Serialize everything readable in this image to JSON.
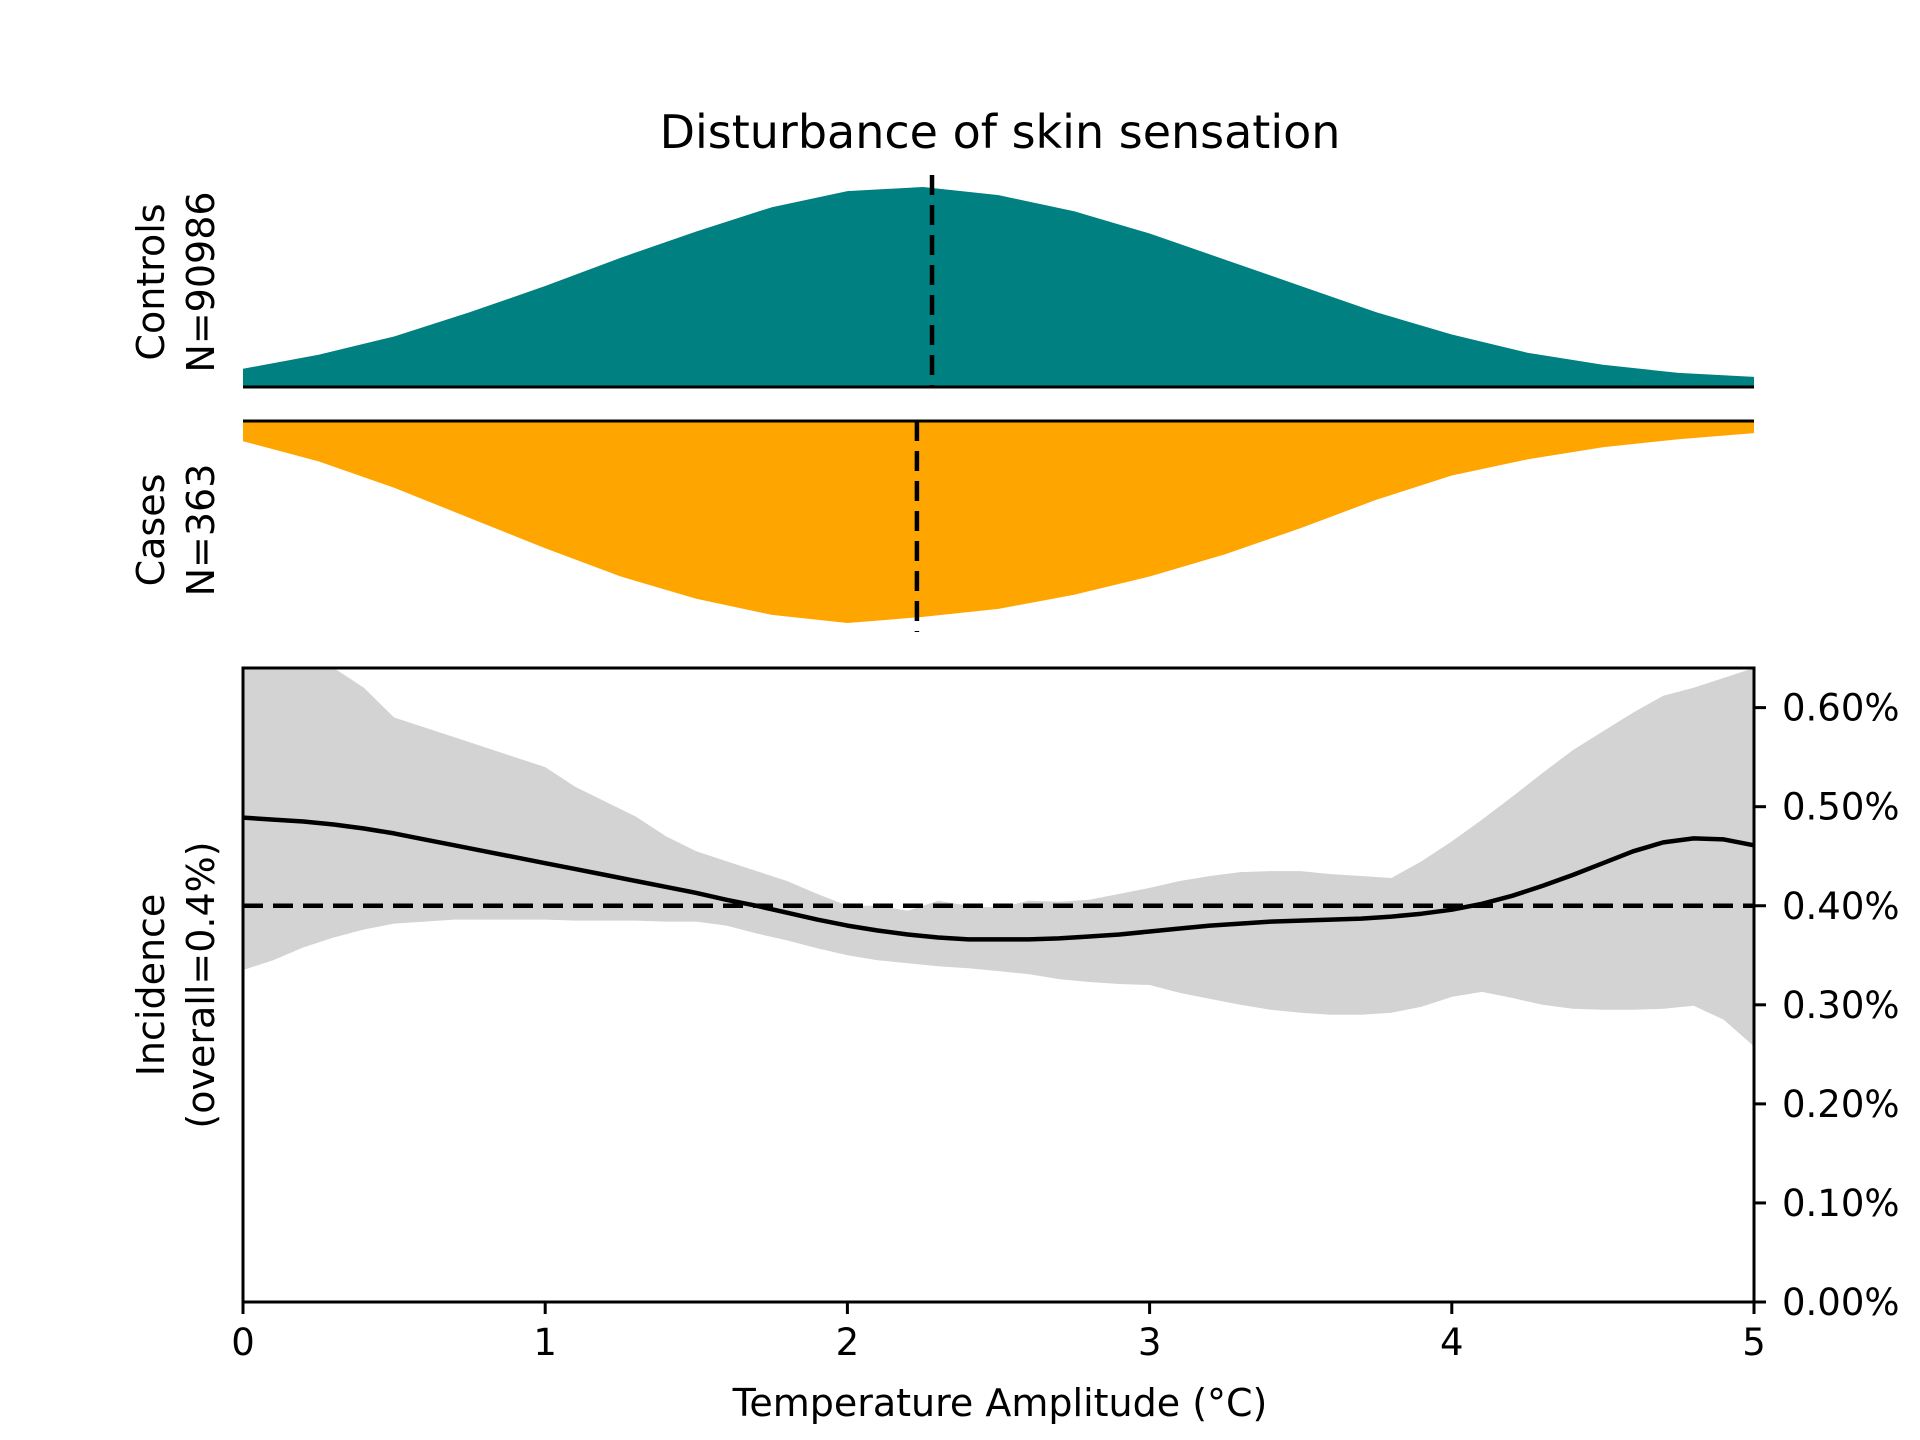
{
  "chart_data": {
    "type": "area",
    "title": "Disturbance of skin sensation",
    "xlabel": "Temperature Amplitude (°C)",
    "xlim": [
      0,
      5
    ],
    "x_ticks": [
      0,
      1,
      2,
      3,
      4,
      5
    ],
    "x_tick_labels": [
      "0",
      "1",
      "2",
      "3",
      "4",
      "5"
    ],
    "controls": {
      "label_line1": "Controls",
      "label_line2": "N=90986",
      "color": "#008080",
      "median": 2.28,
      "x": [
        0,
        0.25,
        0.5,
        0.75,
        1.0,
        1.25,
        1.5,
        1.75,
        2.0,
        2.25,
        2.5,
        2.75,
        3.0,
        3.25,
        3.5,
        3.75,
        4.0,
        4.25,
        4.5,
        4.75,
        5.0
      ],
      "density": [
        0.09,
        0.16,
        0.25,
        0.37,
        0.5,
        0.64,
        0.77,
        0.89,
        0.97,
        0.99,
        0.95,
        0.87,
        0.76,
        0.63,
        0.5,
        0.37,
        0.26,
        0.17,
        0.11,
        0.07,
        0.05
      ]
    },
    "cases": {
      "label_line1": "Cases",
      "label_line2": "N=363",
      "color": "#FFA500",
      "median": 2.23,
      "x": [
        0,
        0.25,
        0.5,
        0.75,
        1.0,
        1.25,
        1.5,
        1.75,
        2.0,
        2.25,
        2.5,
        2.75,
        3.0,
        3.25,
        3.5,
        3.75,
        4.0,
        4.25,
        4.5,
        4.75,
        5.0
      ],
      "density": [
        0.1,
        0.2,
        0.33,
        0.48,
        0.63,
        0.77,
        0.88,
        0.96,
        1.0,
        0.97,
        0.93,
        0.86,
        0.77,
        0.66,
        0.53,
        0.39,
        0.27,
        0.19,
        0.13,
        0.09,
        0.06
      ]
    },
    "incidence": {
      "ylabel_line1": "Incidence",
      "ylabel_line2": "(overall=0.4%)",
      "overall": 0.4,
      "ylim": [
        0,
        0.64
      ],
      "y_ticks": [
        0,
        0.1,
        0.2,
        0.3,
        0.4,
        0.5,
        0.6
      ],
      "y_tick_labels": [
        "0.00%",
        "0.10%",
        "0.20%",
        "0.30%",
        "0.40%",
        "0.50%",
        "0.60%"
      ],
      "line_color": "#000000",
      "band_color": "#d3d3d3",
      "x": [
        0,
        0.1,
        0.2,
        0.3,
        0.4,
        0.5,
        0.6,
        0.7,
        0.8,
        0.9,
        1.0,
        1.1,
        1.2,
        1.3,
        1.4,
        1.5,
        1.6,
        1.7,
        1.8,
        1.9,
        2.0,
        2.1,
        2.2,
        2.3,
        2.4,
        2.5,
        2.6,
        2.7,
        2.8,
        2.9,
        3.0,
        3.1,
        3.2,
        3.3,
        3.4,
        3.5,
        3.6,
        3.7,
        3.8,
        3.9,
        4.0,
        4.1,
        4.2,
        4.3,
        4.4,
        4.5,
        4.6,
        4.7,
        4.8,
        4.9,
        5.0
      ],
      "mean": [
        0.489,
        0.487,
        0.485,
        0.482,
        0.478,
        0.473,
        0.467,
        0.461,
        0.455,
        0.449,
        0.443,
        0.437,
        0.431,
        0.425,
        0.419,
        0.413,
        0.406,
        0.4,
        0.393,
        0.386,
        0.38,
        0.375,
        0.371,
        0.368,
        0.366,
        0.366,
        0.366,
        0.367,
        0.369,
        0.371,
        0.374,
        0.377,
        0.38,
        0.382,
        0.384,
        0.385,
        0.386,
        0.387,
        0.389,
        0.392,
        0.396,
        0.402,
        0.41,
        0.42,
        0.431,
        0.443,
        0.455,
        0.464,
        0.468,
        0.467,
        0.461
      ],
      "upper": [
        0.68,
        0.67,
        0.66,
        0.64,
        0.62,
        0.59,
        0.58,
        0.57,
        0.56,
        0.55,
        0.54,
        0.52,
        0.505,
        0.49,
        0.47,
        0.455,
        0.445,
        0.435,
        0.425,
        0.412,
        0.4,
        0.4,
        0.395,
        0.405,
        0.4,
        0.398,
        0.405,
        0.404,
        0.406,
        0.412,
        0.418,
        0.425,
        0.43,
        0.434,
        0.435,
        0.435,
        0.432,
        0.43,
        0.428,
        0.445,
        0.465,
        0.487,
        0.51,
        0.534,
        0.557,
        0.576,
        0.595,
        0.612,
        0.62,
        0.63,
        0.65
      ],
      "lower": [
        0.335,
        0.345,
        0.358,
        0.368,
        0.376,
        0.382,
        0.384,
        0.386,
        0.386,
        0.386,
        0.386,
        0.385,
        0.385,
        0.385,
        0.384,
        0.384,
        0.38,
        0.372,
        0.365,
        0.357,
        0.35,
        0.345,
        0.342,
        0.339,
        0.337,
        0.334,
        0.331,
        0.326,
        0.323,
        0.321,
        0.32,
        0.312,
        0.306,
        0.3,
        0.295,
        0.292,
        0.29,
        0.29,
        0.292,
        0.298,
        0.308,
        0.313,
        0.307,
        0.3,
        0.296,
        0.295,
        0.295,
        0.296,
        0.299,
        0.285,
        0.258
      ]
    }
  }
}
